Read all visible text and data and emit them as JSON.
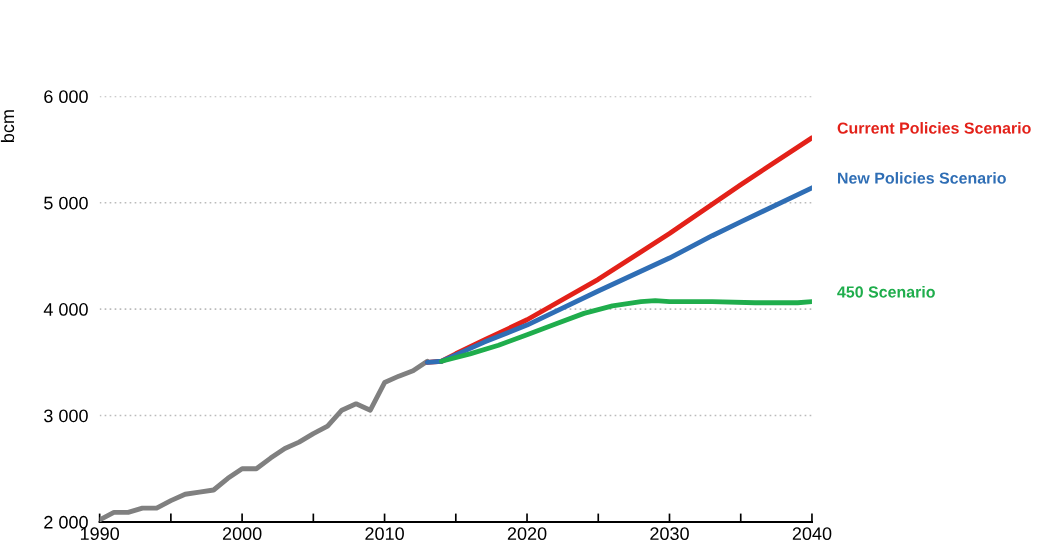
{
  "chart_data": {
    "type": "line",
    "ylabel": "bcm",
    "xlim": [
      1990,
      2040
    ],
    "xticks": [
      1990,
      {
        "value": 1995,
        "label": null
      },
      2000,
      {
        "value": 2005,
        "label": null
      },
      2010,
      {
        "value": 2015,
        "label": null
      },
      2020,
      {
        "value": 2025,
        "label": null
      },
      2030,
      {
        "value": 2035,
        "label": null
      },
      2040
    ],
    "ylim": [
      2000,
      6000
    ],
    "yticks": [
      {
        "value": 2000,
        "label": "2 000"
      },
      {
        "value": 3000,
        "label": "3 000"
      },
      {
        "value": 4000,
        "label": "4 000"
      },
      {
        "value": 5000,
        "label": "5 000"
      },
      {
        "value": 6000,
        "label": "6 000"
      }
    ],
    "grid": "y",
    "legend": false,
    "line_style": "solid",
    "series": [
      {
        "color": "#808080",
        "x": [
          1990,
          1991,
          1992,
          1993,
          1994,
          1995,
          1996,
          1997,
          1998,
          1999,
          2000,
          2001,
          2002,
          2003,
          2004,
          2005,
          2006,
          2007,
          2008,
          2009,
          2010,
          2011,
          2012,
          2013
        ],
        "values": [
          2020,
          2090,
          2090,
          2130,
          2130,
          2200,
          2260,
          2280,
          2300,
          2410,
          2500,
          2500,
          2600,
          2690,
          2750,
          2830,
          2900,
          3050,
          3110,
          3050,
          3310,
          3370,
          3420,
          3510
        ]
      },
      {
        "name": "Current Policies Scenario",
        "color": "#e32119",
        "x": [
          2013,
          2014,
          2015,
          2017,
          2020,
          2025,
          2030,
          2035,
          2040
        ],
        "values": [
          3500,
          3510,
          3580,
          3710,
          3900,
          4280,
          4710,
          5170,
          5610
        ]
      },
      {
        "name": "New Policies Scenario",
        "color": "#2f6eb5",
        "x": [
          2013,
          2014,
          2015,
          2017,
          2020,
          2025,
          2030,
          2033,
          2035,
          2040
        ],
        "values": [
          3500,
          3510,
          3570,
          3690,
          3850,
          4170,
          4480,
          4690,
          4820,
          5140
        ]
      },
      {
        "name": "450 Scenario",
        "color": "#1fad4c",
        "x": [
          2014,
          2016,
          2018,
          2020,
          2022,
          2024,
          2026,
          2028,
          2029,
          2030,
          2033,
          2036,
          2038,
          2039,
          2040
        ],
        "values": [
          3510,
          3580,
          3660,
          3760,
          3860,
          3960,
          4030,
          4070,
          4080,
          4070,
          4070,
          4060,
          4060,
          4060,
          4070
        ]
      }
    ]
  }
}
